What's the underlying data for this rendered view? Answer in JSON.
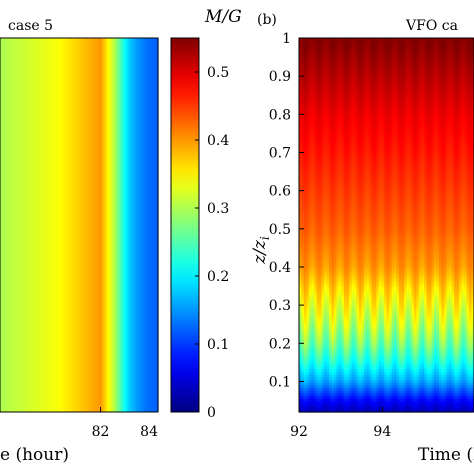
{
  "chart_data": [
    {
      "type": "heatmap",
      "panel_label": "",
      "title": "case 5",
      "xlabel": "e (hour)",
      "x_ticks": [
        82,
        84
      ],
      "xlim": [
        78.5,
        84
      ],
      "colorbar": {
        "label": "M/G",
        "range": [
          0,
          0.55
        ],
        "ticks": [
          0,
          0.1,
          0.2,
          0.3,
          0.4,
          0.5
        ],
        "tick_labels": [
          "0",
          "0.1",
          "0.2",
          "0.3",
          "0.4",
          "0.5"
        ]
      },
      "profile_by_time": {
        "t": [
          78.5,
          79.0,
          79.5,
          80.0,
          80.5,
          81.0,
          81.5,
          82.0,
          82.5,
          82.8,
          83.0,
          83.3,
          83.6,
          84.0
        ],
        "value": [
          0.3,
          0.31,
          0.32,
          0.33,
          0.34,
          0.36,
          0.38,
          0.4,
          0.3,
          0.22,
          0.18,
          0.15,
          0.13,
          0.12
        ]
      }
    },
    {
      "type": "heatmap",
      "panel_label": "(b)",
      "title": "VFO ca",
      "xlabel": "Time (h",
      "ylabel": "z/zi",
      "ylabel_main": "z",
      "ylabel_sub": "i",
      "x_ticks": [
        92,
        94
      ],
      "xlim": [
        92,
        96.2
      ],
      "y_ticks": [
        0.1,
        0.2,
        0.3,
        0.4,
        0.5,
        0.6,
        0.7,
        0.8,
        0.9,
        1
      ],
      "y_tick_labels": [
        "0.1",
        "0.2",
        "0.3",
        "0.4",
        "0.5",
        "0.6",
        "0.7",
        "0.8",
        "0.9",
        "1"
      ],
      "ylim": [
        0.02,
        1
      ],
      "profile_by_height": {
        "z": [
          0.02,
          0.05,
          0.1,
          0.15,
          0.2,
          0.25,
          0.3,
          0.35,
          0.4,
          0.5,
          0.6,
          0.7,
          0.8,
          0.9,
          1.0
        ],
        "value": [
          0.03,
          0.07,
          0.16,
          0.22,
          0.27,
          0.31,
          0.34,
          0.37,
          0.4,
          0.43,
          0.45,
          0.47,
          0.49,
          0.52,
          0.55
        ]
      },
      "oscillation_period_hours": 0.33
    }
  ]
}
